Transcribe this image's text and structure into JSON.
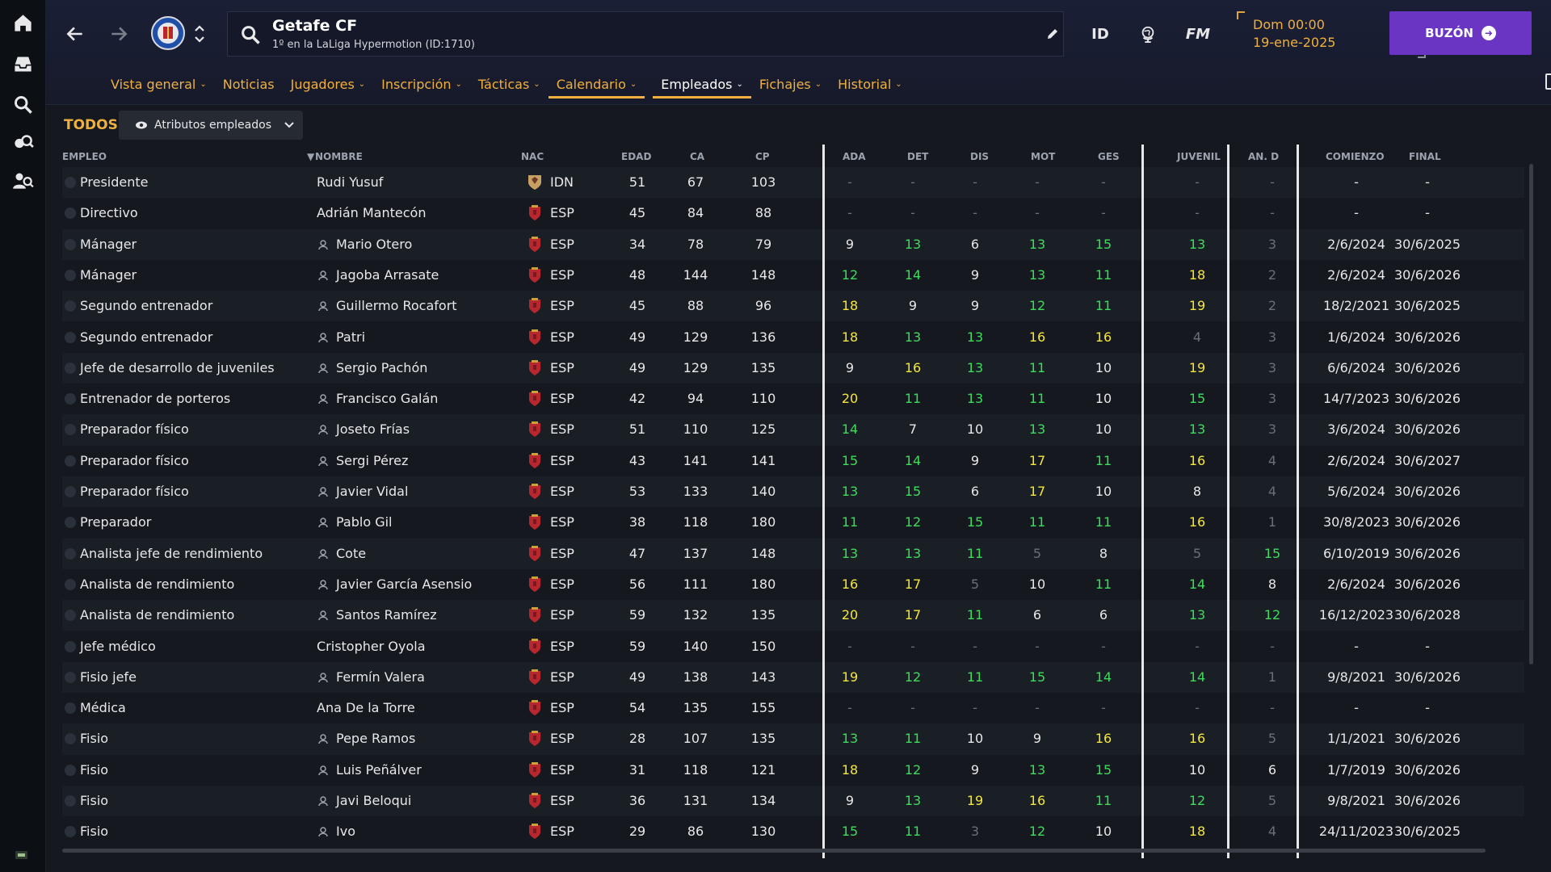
{
  "header": {
    "club_name": "Getafe CF",
    "club_subtitle": "1º en la LaLiga Hypermotion (ID:1710)",
    "id_label": "ID",
    "fm_label": "FM",
    "date_day": "Dom 00:00",
    "date_date": "19-ene-2025",
    "inbox_label": "BUZÓN"
  },
  "tabs": [
    {
      "label": "Vista general",
      "dropdown": true
    },
    {
      "label": "Noticias",
      "dropdown": false
    },
    {
      "label": "Jugadores",
      "dropdown": true
    },
    {
      "label": "Inscripción",
      "dropdown": true
    },
    {
      "label": "Tácticas",
      "dropdown": true
    },
    {
      "label": "Calendario",
      "dropdown": true
    },
    {
      "label": "Empleados",
      "dropdown": true
    },
    {
      "label": "Fichajes",
      "dropdown": true
    },
    {
      "label": "Historial",
      "dropdown": true
    }
  ],
  "filter": {
    "all_label": "TODOS",
    "dropdown_label": "Atributos empleados"
  },
  "columns": {
    "empleo": "EMPLEO",
    "nombre": "NOMBRE",
    "nac": "NAC",
    "edad": "EDAD",
    "ca": "CA",
    "cp": "CP",
    "ada": "ADA",
    "det": "DET",
    "dis": "DIS",
    "mot": "MOT",
    "ges": "GES",
    "juvenil": "JUVENIL",
    "and": "AN. D",
    "comienzo": "COMIENZO",
    "final": "FINAL"
  },
  "colors": {
    "accent": "#f0b03f",
    "attr_green": "#3ddc5c",
    "attr_yellow": "#f3e63c",
    "attr_dim": "#6a707a",
    "inbox": "#6b35c4"
  },
  "rows": [
    {
      "job": "Presidente",
      "name": "Rudi Yusuf",
      "person": false,
      "nat": "IDN",
      "age": "51",
      "ca": "67",
      "cp": "103",
      "ada": "-",
      "det": "-",
      "dis": "-",
      "mot": "-",
      "ges": "-",
      "juv": "-",
      "and": "-",
      "start": "-",
      "end": "-"
    },
    {
      "job": "Directivo",
      "name": "Adrián Mantecón",
      "person": false,
      "nat": "ESP",
      "age": "45",
      "ca": "84",
      "cp": "88",
      "ada": "-",
      "det": "-",
      "dis": "-",
      "mot": "-",
      "ges": "-",
      "juv": "-",
      "and": "-",
      "start": "-",
      "end": "-"
    },
    {
      "job": "Mánager",
      "name": "Mario Otero",
      "person": true,
      "nat": "ESP",
      "age": "34",
      "ca": "78",
      "cp": "79",
      "ada": "9",
      "det": "13",
      "dis": "6",
      "mot": "13",
      "ges": "15",
      "juv": "13",
      "and": "3",
      "start": "2/6/2024",
      "end": "30/6/2025"
    },
    {
      "job": "Mánager",
      "name": "Jagoba Arrasate",
      "person": true,
      "nat": "ESP",
      "age": "48",
      "ca": "144",
      "cp": "148",
      "ada": "12",
      "det": "14",
      "dis": "9",
      "mot": "13",
      "ges": "11",
      "juv": "18",
      "and": "2",
      "start": "2/6/2024",
      "end": "30/6/2026"
    },
    {
      "job": "Segundo entrenador",
      "name": "Guillermo Rocafort",
      "person": true,
      "nat": "ESP",
      "age": "45",
      "ca": "88",
      "cp": "96",
      "ada": "18",
      "det": "9",
      "dis": "9",
      "mot": "12",
      "ges": "11",
      "juv": "19",
      "and": "2",
      "start": "18/2/2021",
      "end": "30/6/2025"
    },
    {
      "job": "Segundo entrenador",
      "name": "Patri",
      "person": true,
      "nat": "ESP",
      "age": "49",
      "ca": "129",
      "cp": "136",
      "ada": "18",
      "det": "13",
      "dis": "13",
      "mot": "16",
      "ges": "16",
      "juv": "4",
      "and": "3",
      "start": "1/6/2024",
      "end": "30/6/2026"
    },
    {
      "job": "Jefe de desarrollo de juveniles",
      "name": "Sergio Pachón",
      "person": true,
      "nat": "ESP",
      "age": "49",
      "ca": "129",
      "cp": "135",
      "ada": "9",
      "det": "16",
      "dis": "13",
      "mot": "11",
      "ges": "10",
      "juv": "19",
      "and": "3",
      "start": "6/6/2024",
      "end": "30/6/2026"
    },
    {
      "job": "Entrenador de porteros",
      "name": "Francisco Galán",
      "person": true,
      "nat": "ESP",
      "age": "42",
      "ca": "94",
      "cp": "110",
      "ada": "20",
      "det": "11",
      "dis": "13",
      "mot": "11",
      "ges": "10",
      "juv": "15",
      "and": "3",
      "start": "14/7/2023",
      "end": "30/6/2026"
    },
    {
      "job": "Preparador físico",
      "name": "Joseto Frías",
      "person": true,
      "nat": "ESP",
      "age": "51",
      "ca": "110",
      "cp": "125",
      "ada": "14",
      "det": "7",
      "dis": "10",
      "mot": "13",
      "ges": "10",
      "juv": "13",
      "and": "3",
      "start": "3/6/2024",
      "end": "30/6/2026"
    },
    {
      "job": "Preparador físico",
      "name": "Sergi Pérez",
      "person": true,
      "nat": "ESP",
      "age": "43",
      "ca": "141",
      "cp": "141",
      "ada": "15",
      "det": "14",
      "dis": "9",
      "mot": "17",
      "ges": "11",
      "juv": "16",
      "and": "4",
      "start": "2/6/2024",
      "end": "30/6/2027"
    },
    {
      "job": "Preparador físico",
      "name": "Javier Vidal",
      "person": true,
      "nat": "ESP",
      "age": "53",
      "ca": "133",
      "cp": "140",
      "ada": "13",
      "det": "15",
      "dis": "6",
      "mot": "17",
      "ges": "10",
      "juv": "8",
      "and": "4",
      "start": "5/6/2024",
      "end": "30/6/2026"
    },
    {
      "job": "Preparador",
      "name": "Pablo Gil",
      "person": true,
      "nat": "ESP",
      "age": "38",
      "ca": "118",
      "cp": "180",
      "ada": "11",
      "det": "12",
      "dis": "15",
      "mot": "11",
      "ges": "11",
      "juv": "16",
      "and": "1",
      "start": "30/8/2023",
      "end": "30/6/2026"
    },
    {
      "job": "Analista jefe de rendimiento",
      "name": "Cote",
      "person": true,
      "nat": "ESP",
      "age": "47",
      "ca": "137",
      "cp": "148",
      "ada": "13",
      "det": "13",
      "dis": "11",
      "mot": "5",
      "ges": "8",
      "juv": "5",
      "and": "15",
      "start": "6/10/2019",
      "end": "30/6/2026"
    },
    {
      "job": "Analista de rendimiento",
      "name": "Javier García Asensio",
      "person": true,
      "nat": "ESP",
      "age": "56",
      "ca": "111",
      "cp": "180",
      "ada": "16",
      "det": "17",
      "dis": "5",
      "mot": "10",
      "ges": "11",
      "juv": "14",
      "and": "8",
      "start": "2/6/2024",
      "end": "30/6/2026"
    },
    {
      "job": "Analista de rendimiento",
      "name": "Santos Ramírez",
      "person": true,
      "nat": "ESP",
      "age": "59",
      "ca": "132",
      "cp": "135",
      "ada": "20",
      "det": "17",
      "dis": "11",
      "mot": "6",
      "ges": "6",
      "juv": "13",
      "and": "12",
      "start": "16/12/2023",
      "end": "30/6/2028"
    },
    {
      "job": "Jefe médico",
      "name": "Cristopher Oyola",
      "person": false,
      "nat": "ESP",
      "age": "59",
      "ca": "140",
      "cp": "150",
      "ada": "-",
      "det": "-",
      "dis": "-",
      "mot": "-",
      "ges": "-",
      "juv": "-",
      "and": "-",
      "start": "-",
      "end": "-"
    },
    {
      "job": "Fisio jefe",
      "name": "Fermín Valera",
      "person": true,
      "nat": "ESP",
      "age": "49",
      "ca": "138",
      "cp": "143",
      "ada": "19",
      "det": "12",
      "dis": "11",
      "mot": "15",
      "ges": "14",
      "juv": "14",
      "and": "1",
      "start": "9/8/2021",
      "end": "30/6/2026"
    },
    {
      "job": "Médica",
      "name": "Ana De la Torre",
      "person": false,
      "nat": "ESP",
      "age": "54",
      "ca": "135",
      "cp": "155",
      "ada": "-",
      "det": "-",
      "dis": "-",
      "mot": "-",
      "ges": "-",
      "juv": "-",
      "and": "-",
      "start": "-",
      "end": "-"
    },
    {
      "job": "Fisio",
      "name": "Pepe Ramos",
      "person": true,
      "nat": "ESP",
      "age": "28",
      "ca": "107",
      "cp": "135",
      "ada": "13",
      "det": "11",
      "dis": "10",
      "mot": "9",
      "ges": "16",
      "juv": "16",
      "and": "5",
      "start": "1/1/2021",
      "end": "30/6/2026"
    },
    {
      "job": "Fisio",
      "name": "Luis Peñálver",
      "person": true,
      "nat": "ESP",
      "age": "31",
      "ca": "118",
      "cp": "121",
      "ada": "18",
      "det": "12",
      "dis": "9",
      "mot": "13",
      "ges": "15",
      "juv": "10",
      "and": "6",
      "start": "1/7/2019",
      "end": "30/6/2026"
    },
    {
      "job": "Fisio",
      "name": "Javi Beloqui",
      "person": true,
      "nat": "ESP",
      "age": "36",
      "ca": "131",
      "cp": "134",
      "ada": "9",
      "det": "13",
      "dis": "19",
      "mot": "16",
      "ges": "11",
      "juv": "12",
      "and": "5",
      "start": "9/8/2021",
      "end": "30/6/2026"
    },
    {
      "job": "Fisio",
      "name": "Ivo",
      "person": true,
      "nat": "ESP",
      "age": "29",
      "ca": "86",
      "cp": "130",
      "ada": "15",
      "det": "11",
      "dis": "3",
      "mot": "12",
      "ges": "10",
      "juv": "18",
      "and": "4",
      "start": "24/11/2023",
      "end": "30/6/2025"
    }
  ]
}
